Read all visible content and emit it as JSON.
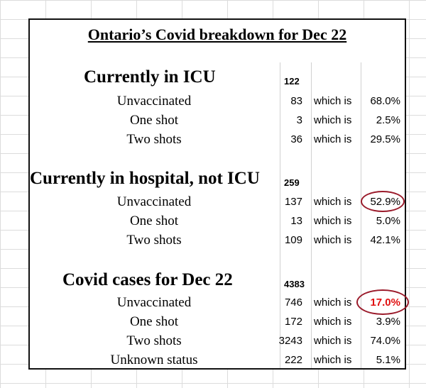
{
  "title": "Ontario’s Covid breakdown for Dec 22",
  "which_label": "which is",
  "sections": [
    {
      "title": "Currently in ICU",
      "total": "122",
      "rows": [
        {
          "label": "Unvaccinated",
          "count": "83",
          "pct": "68.0%"
        },
        {
          "label": "One shot",
          "count": "3",
          "pct": "2.5%"
        },
        {
          "label": "Two shots",
          "count": "36",
          "pct": "29.5%"
        }
      ]
    },
    {
      "title": "Currently in hospital, not ICU",
      "total": "259",
      "rows": [
        {
          "label": "Unvaccinated",
          "count": "137",
          "pct": "52.9%"
        },
        {
          "label": "One shot",
          "count": "13",
          "pct": "5.0%"
        },
        {
          "label": "Two shots",
          "count": "109",
          "pct": "42.1%"
        }
      ]
    },
    {
      "title": "Covid cases for Dec 22",
      "total": "4383",
      "rows": [
        {
          "label": "Unvaccinated",
          "count": "746",
          "pct": "17.0%"
        },
        {
          "label": "One shot",
          "count": "172",
          "pct": "3.9%"
        },
        {
          "label": "Two shots",
          "count": "3243",
          "pct": "74.0%"
        },
        {
          "label": "Unknown status",
          "count": "222",
          "pct": "5.1%"
        }
      ]
    }
  ],
  "colors": {
    "highlight_text": "#e01010",
    "circle": "#9a1a2a",
    "gridline": "#dcdcdc"
  }
}
